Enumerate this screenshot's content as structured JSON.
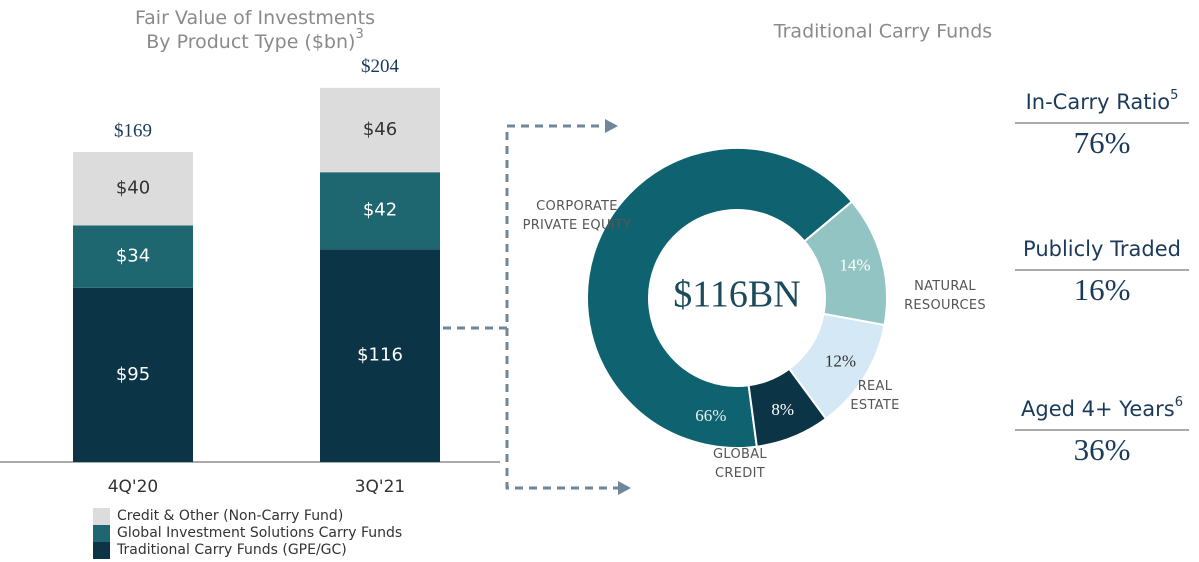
{
  "chart_data": [
    {
      "type": "stacked_bar",
      "title": "Fair Value of Investments By Product Type ($bn)",
      "title_footnote": "3",
      "categories": [
        "4Q'20",
        "3Q'21"
      ],
      "totals": [
        169,
        204
      ],
      "total_labels": [
        "$169",
        "$204"
      ],
      "series": [
        {
          "name": "Traditional Carry Funds (GPE/GC)",
          "color": "#0b3447",
          "values": [
            95,
            116
          ],
          "value_labels": [
            "$95",
            "$116"
          ]
        },
        {
          "name": "Global Investment Solutions Carry Funds",
          "color": "#1e6670",
          "values": [
            34,
            42
          ],
          "value_labels": [
            "$34",
            "$42"
          ]
        },
        {
          "name": "Credit & Other (Non-Carry Fund)",
          "color": "#dcdcdc",
          "values": [
            40,
            46
          ],
          "value_labels": [
            "$40",
            "$46"
          ]
        }
      ]
    },
    {
      "type": "donut",
      "title": "Traditional Carry Funds",
      "center_label": "$116BN",
      "categories": [
        "CORPORATE PRIVATE EQUITY",
        "NATURAL RESOURCES",
        "REAL ESTATE",
        "GLOBAL CREDIT"
      ],
      "values": [
        66,
        14,
        12,
        8
      ],
      "value_labels": [
        "66%",
        "14%",
        "12%",
        "8%"
      ],
      "colors": [
        "#0f6370",
        "#93c4c4",
        "#d4e8f5",
        "#0b3447"
      ]
    }
  ],
  "metrics": [
    {
      "label": "In-Carry Ratio",
      "footnote": "5",
      "value": "76%"
    },
    {
      "label": "Publicly Traded",
      "value": "16%"
    },
    {
      "label": "Aged 4+ Years",
      "footnote": "6",
      "value": "36%"
    }
  ]
}
